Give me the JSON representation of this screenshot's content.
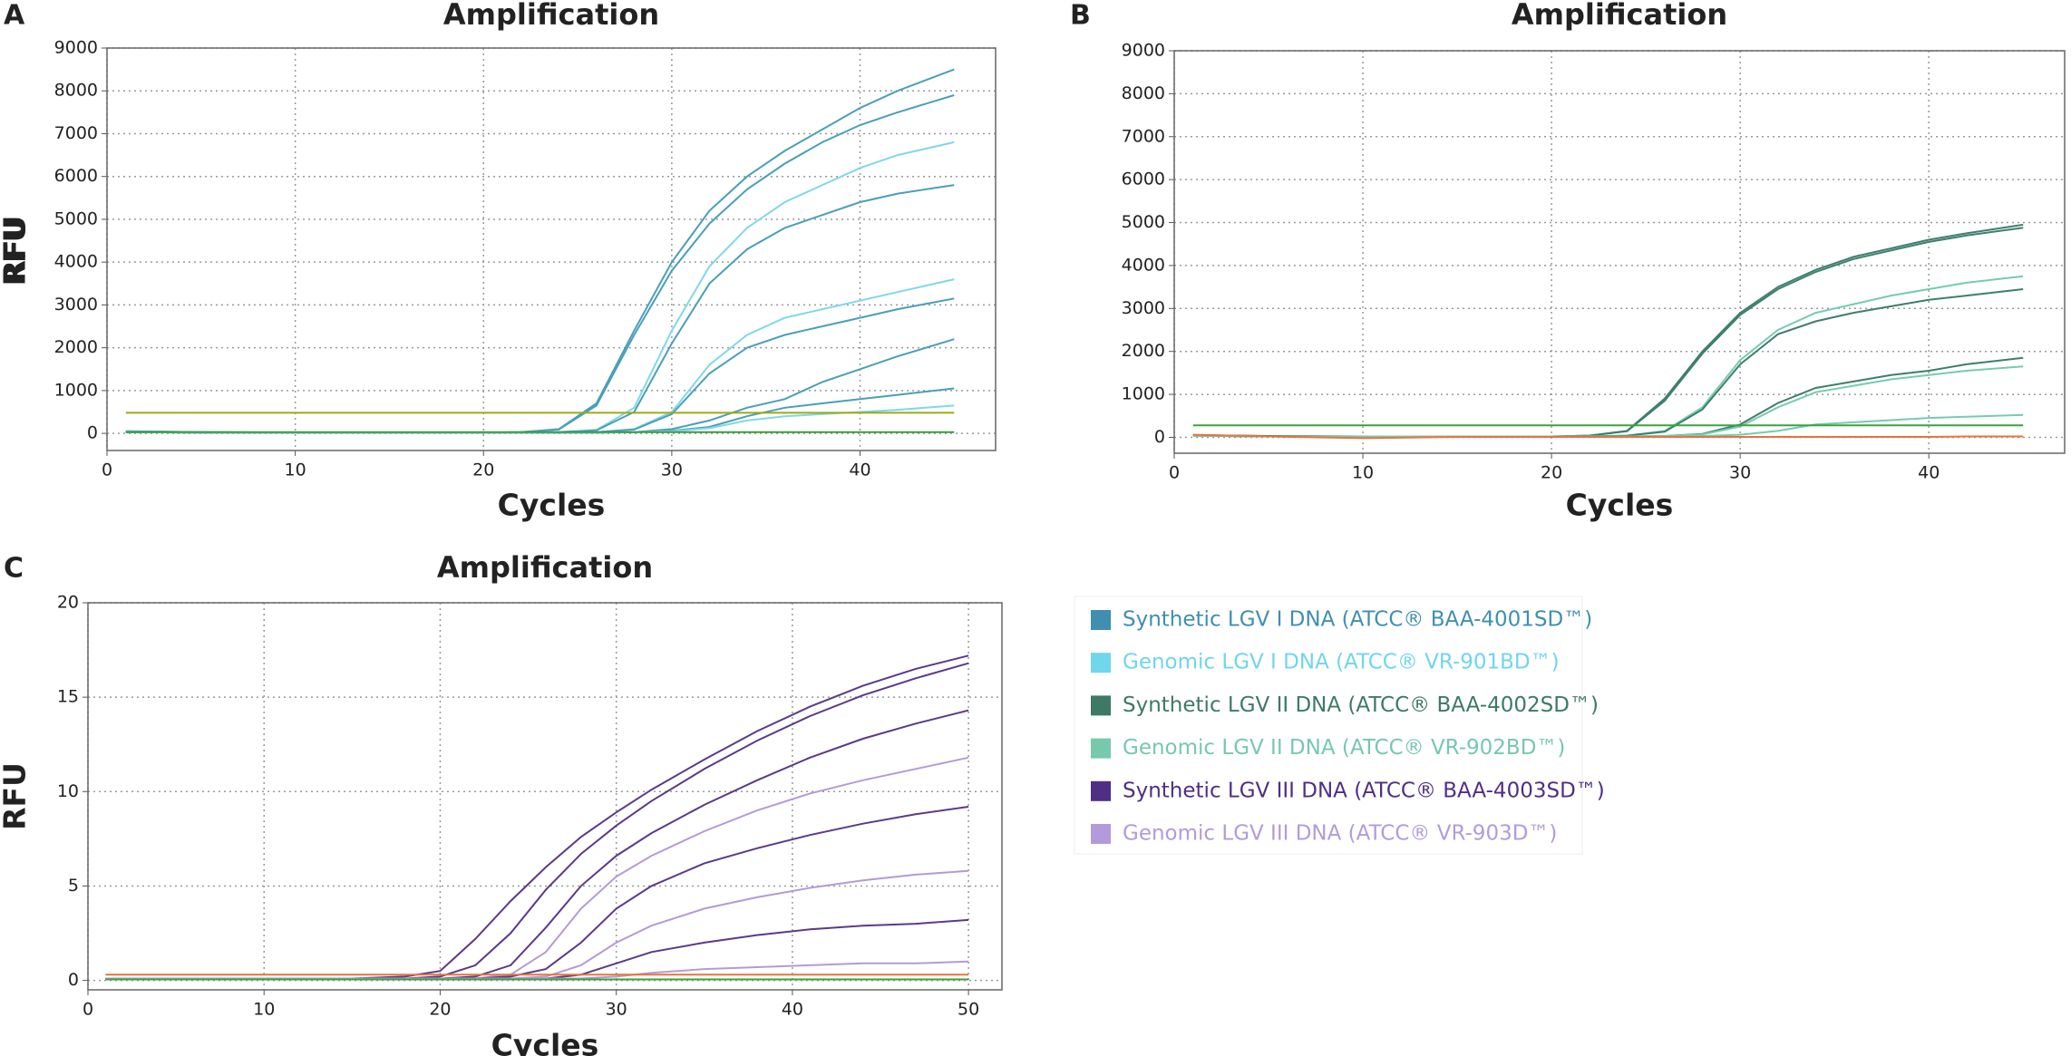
{
  "chart_data": [
    {
      "type": "line",
      "panel": "A",
      "title": "Amplification",
      "x_label": "Cycles",
      "y_label": "RFU",
      "xlim": [
        0,
        47.2
      ],
      "ylim": [
        -400,
        9000
      ],
      "xticks": [
        0,
        10,
        20,
        30,
        40
      ],
      "yticks": [
        0,
        1000,
        2000,
        3000,
        4000,
        5000,
        6000,
        7000,
        8000,
        9000
      ],
      "grid": true,
      "x": [
        1,
        5,
        10,
        15,
        20,
        22,
        24,
        26,
        28,
        30,
        32,
        34,
        36,
        38,
        40,
        42,
        45
      ],
      "series": [
        {
          "color": "#4a9fb8",
          "values": [
            50,
            30,
            20,
            20,
            20,
            30,
            100,
            700,
            2400,
            4000,
            5200,
            6000,
            6600,
            7100,
            7600,
            8000,
            8500
          ]
        },
        {
          "color": "#4a9fb8",
          "values": [
            50,
            30,
            20,
            20,
            20,
            30,
            90,
            650,
            2300,
            3800,
            4900,
            5700,
            6300,
            6800,
            7200,
            7500,
            7900
          ]
        },
        {
          "color": "#7fd8e8",
          "values": [
            40,
            20,
            20,
            20,
            20,
            20,
            30,
            80,
            600,
            2400,
            3900,
            4800,
            5400,
            5800,
            6200,
            6500,
            6800
          ]
        },
        {
          "color": "#4a9fb8",
          "values": [
            40,
            20,
            20,
            20,
            20,
            20,
            30,
            70,
            500,
            2100,
            3500,
            4300,
            4800,
            5100,
            5400,
            5600,
            5800
          ]
        },
        {
          "color": "#7fd8e8",
          "values": [
            30,
            20,
            20,
            20,
            20,
            20,
            20,
            30,
            100,
            500,
            1600,
            2300,
            2700,
            2900,
            3100,
            3300,
            3600
          ]
        },
        {
          "color": "#4a9fb8",
          "values": [
            30,
            20,
            20,
            20,
            20,
            20,
            20,
            30,
            90,
            450,
            1400,
            2000,
            2300,
            2500,
            2700,
            2900,
            3150
          ]
        },
        {
          "color": "#4a9fb8",
          "values": [
            30,
            20,
            20,
            20,
            20,
            20,
            20,
            20,
            30,
            100,
            300,
            600,
            800,
            1200,
            1500,
            1800,
            2200
          ]
        },
        {
          "color": "#4a9fb8",
          "values": [
            30,
            20,
            20,
            20,
            20,
            20,
            20,
            20,
            30,
            60,
            150,
            400,
            600,
            700,
            800,
            900,
            1050
          ]
        },
        {
          "color": "#7fd8e8",
          "values": [
            30,
            20,
            20,
            20,
            20,
            20,
            20,
            20,
            30,
            50,
            120,
            300,
            400,
            450,
            500,
            550,
            650
          ]
        },
        {
          "color": "#9aaa1a",
          "values": [
            480,
            480,
            480,
            480,
            480,
            480,
            480,
            480,
            480,
            480,
            480,
            480,
            480,
            480,
            480,
            480,
            480
          ]
        },
        {
          "color": "#3b9c3b",
          "values": [
            30,
            30,
            30,
            30,
            30,
            30,
            30,
            30,
            30,
            30,
            30,
            30,
            30,
            30,
            30,
            30,
            30
          ]
        }
      ]
    },
    {
      "type": "line",
      "panel": "B",
      "title": "Amplification",
      "x_label": "Cycles",
      "y_label": "RFU",
      "xlim": [
        0,
        47.2
      ],
      "ylim": [
        -370,
        9000
      ],
      "xticks": [
        0,
        10,
        20,
        30,
        40
      ],
      "yticks": [
        0,
        1000,
        2000,
        3000,
        4000,
        5000,
        6000,
        7000,
        8000,
        9000
      ],
      "grid": true,
      "x": [
        1,
        5,
        10,
        15,
        20,
        22,
        24,
        26,
        28,
        30,
        32,
        34,
        36,
        38,
        40,
        42,
        45
      ],
      "series": [
        {
          "color": "#3d7f6e",
          "values": [
            50,
            30,
            20,
            20,
            20,
            40,
            150,
            900,
            2000,
            2900,
            3500,
            3900,
            4200,
            4400,
            4600,
            4750,
            4950
          ]
        },
        {
          "color": "#3d7f6e",
          "values": [
            50,
            30,
            20,
            20,
            20,
            40,
            140,
            850,
            1950,
            2850,
            3450,
            3850,
            4150,
            4350,
            4550,
            4700,
            4880
          ]
        },
        {
          "color": "#76cbb0",
          "values": [
            40,
            20,
            20,
            20,
            20,
            20,
            40,
            150,
            700,
            1800,
            2500,
            2900,
            3100,
            3300,
            3450,
            3600,
            3750
          ]
        },
        {
          "color": "#3d7f6e",
          "values": [
            40,
            20,
            20,
            20,
            20,
            20,
            40,
            130,
            650,
            1700,
            2400,
            2700,
            2900,
            3050,
            3200,
            3300,
            3450
          ]
        },
        {
          "color": "#3d7f6e",
          "values": [
            40,
            20,
            20,
            20,
            20,
            20,
            20,
            30,
            80,
            300,
            800,
            1150,
            1300,
            1450,
            1550,
            1700,
            1850
          ]
        },
        {
          "color": "#76cbb0",
          "values": [
            40,
            20,
            20,
            20,
            20,
            20,
            20,
            30,
            70,
            250,
            700,
            1050,
            1200,
            1350,
            1450,
            1550,
            1650
          ]
        },
        {
          "color": "#76cbb0",
          "values": [
            40,
            20,
            20,
            20,
            20,
            20,
            20,
            20,
            30,
            60,
            150,
            300,
            350,
            400,
            450,
            480,
            520
          ]
        },
        {
          "color": "#3aa33a",
          "values": [
            280,
            280,
            280,
            280,
            280,
            280,
            280,
            280,
            280,
            280,
            280,
            280,
            280,
            280,
            280,
            280,
            280
          ]
        },
        {
          "color": "#e8733a",
          "values": [
            60,
            20,
            -20,
            10,
            10,
            10,
            10,
            10,
            10,
            10,
            10,
            10,
            10,
            10,
            10,
            20,
            20
          ]
        }
      ]
    },
    {
      "type": "line",
      "panel": "C",
      "title": "Amplification",
      "x_label": "Cycles",
      "y_label": "RFU",
      "xlim": [
        0,
        51.9
      ],
      "ylim": [
        -0.5,
        20
      ],
      "xticks": [
        0,
        10,
        20,
        30,
        40,
        50
      ],
      "yticks": [
        0,
        5,
        10,
        15,
        20
      ],
      "grid": true,
      "x": [
        1,
        5,
        10,
        15,
        18,
        20,
        22,
        24,
        26,
        28,
        30,
        32,
        35,
        38,
        41,
        44,
        47,
        50
      ],
      "series": [
        {
          "color": "#5a3a8a",
          "values": [
            0.1,
            0.1,
            0.1,
            0.1,
            0.2,
            0.5,
            2.2,
            4.2,
            6.0,
            7.6,
            8.9,
            10.1,
            11.7,
            13.2,
            14.5,
            15.6,
            16.5,
            17.2
          ]
        },
        {
          "color": "#5a3a8a",
          "values": [
            0.1,
            0.1,
            0.1,
            0.1,
            0.1,
            0.2,
            0.8,
            2.5,
            4.8,
            6.7,
            8.2,
            9.5,
            11.2,
            12.7,
            14.0,
            15.1,
            16.0,
            16.8
          ]
        },
        {
          "color": "#5a3a8a",
          "values": [
            0.1,
            0.1,
            0.1,
            0.1,
            0.1,
            0.1,
            0.2,
            0.8,
            2.8,
            5.0,
            6.6,
            7.8,
            9.3,
            10.6,
            11.8,
            12.8,
            13.6,
            14.3
          ]
        },
        {
          "color": "#b49ad8",
          "values": [
            0.1,
            0.1,
            0.1,
            0.1,
            0.1,
            0.1,
            0.1,
            0.3,
            1.5,
            3.8,
            5.5,
            6.6,
            7.9,
            9.0,
            9.9,
            10.6,
            11.2,
            11.8
          ]
        },
        {
          "color": "#5a3a8a",
          "values": [
            0.1,
            0.1,
            0.1,
            0.1,
            0.1,
            0.1,
            0.1,
            0.2,
            0.6,
            2.0,
            3.8,
            5.0,
            6.2,
            7.0,
            7.7,
            8.3,
            8.8,
            9.2
          ]
        },
        {
          "color": "#b49ad8",
          "values": [
            0.1,
            0.1,
            0.1,
            0.1,
            0.1,
            0.1,
            0.1,
            0.1,
            0.2,
            0.8,
            2.0,
            2.9,
            3.8,
            4.4,
            4.9,
            5.3,
            5.6,
            5.8
          ]
        },
        {
          "color": "#5a3a8a",
          "values": [
            0.1,
            0.1,
            0.1,
            0.1,
            0.1,
            0.1,
            0.1,
            0.1,
            0.1,
            0.3,
            0.9,
            1.5,
            2.0,
            2.4,
            2.7,
            2.9,
            3.0,
            3.2
          ]
        },
        {
          "color": "#b49ad8",
          "values": [
            0.1,
            0.1,
            0.1,
            0.1,
            0.1,
            0.1,
            0.1,
            0.1,
            0.1,
            0.1,
            0.2,
            0.4,
            0.6,
            0.7,
            0.8,
            0.9,
            0.9,
            1.0
          ]
        },
        {
          "color": "#e8733a",
          "values": [
            0.3,
            0.3,
            0.3,
            0.3,
            0.3,
            0.3,
            0.3,
            0.3,
            0.3,
            0.3,
            0.3,
            0.3,
            0.3,
            0.3,
            0.3,
            0.3,
            0.3,
            0.3
          ]
        },
        {
          "color": "#3aa33a",
          "values": [
            0.05,
            0.05,
            0.05,
            0.05,
            0.05,
            0.05,
            0.05,
            0.05,
            0.05,
            0.05,
            0.05,
            0.05,
            0.05,
            0.05,
            0.05,
            0.05,
            0.05,
            0.05
          ]
        }
      ]
    }
  ],
  "legend": {
    "items": [
      {
        "label": "Synthetic LGV I DNA (ATCC® BAA-4001SD™)",
        "color": "#3f8fb0"
      },
      {
        "label": "Genomic LGV I DNA (ATCC® VR-901BD™)",
        "color": "#6fd6ec"
      },
      {
        "label": "Synthetic LGV II DNA (ATCC® BAA-4002SD™)",
        "color": "#3d7a66"
      },
      {
        "label": "Genomic LGV II DNA (ATCC® VR-902BD™)",
        "color": "#76c9ab"
      },
      {
        "label": "Synthetic LGV III DNA (ATCC® BAA-4003SD™)",
        "color": "#4f2e86"
      },
      {
        "label": "Genomic LGV III DNA (ATCC® VR-903D™)",
        "color": "#b39bdb"
      }
    ]
  }
}
